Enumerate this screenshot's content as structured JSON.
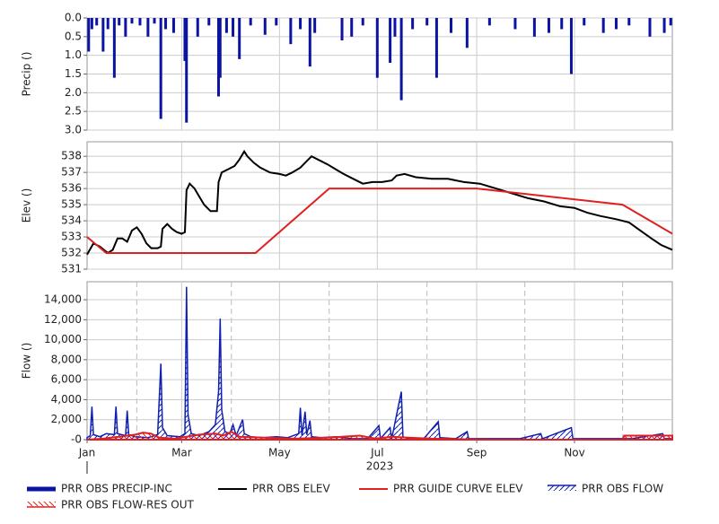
{
  "chart_data": [
    {
      "type": "bar",
      "ylabel": "Precip ()",
      "y_inverted": true,
      "grid": true,
      "ylim": [
        0,
        3
      ],
      "yticks": [
        {
          "value": 0,
          "label": "0.0"
        },
        0.5,
        {
          "value": 1,
          "label": "1.0"
        },
        1.5,
        {
          "value": 2,
          "label": "2.0"
        },
        2.5,
        {
          "value": 3,
          "label": "3.0"
        }
      ],
      "series": [
        {
          "name": "PRR OBS PRECIP-INC",
          "color": "#0a14a0",
          "x": [
            1,
            3,
            6,
            10,
            13,
            17,
            20,
            24,
            28,
            33,
            38,
            42,
            46,
            49,
            54,
            61,
            62,
            69,
            76,
            82,
            83,
            87,
            91,
            95,
            102,
            111,
            118,
            127,
            133,
            139,
            142,
            159,
            165,
            172,
            181,
            189,
            192,
            196,
            203,
            212,
            218,
            227,
            237,
            251,
            267,
            279,
            288,
            296,
            302,
            310,
            322,
            330,
            338,
            351,
            360,
            364
          ],
          "values": [
            0.9,
            0.3,
            0.2,
            0.9,
            0.3,
            1.6,
            0.2,
            0.5,
            0.15,
            0.2,
            0.5,
            0.15,
            2.7,
            0.3,
            0.4,
            1.15,
            2.8,
            0.5,
            0.2,
            2.1,
            1.6,
            0.4,
            0.5,
            1.1,
            0.2,
            0.45,
            0.2,
            0.7,
            0.3,
            1.3,
            0.4,
            0.6,
            0.5,
            0.2,
            1.6,
            1.2,
            0.5,
            2.2,
            0.3,
            0.2,
            1.6,
            0.4,
            0.8,
            0.2,
            0.3,
            0.5,
            0.4,
            0.3,
            1.5,
            0.2,
            0.4,
            0.3,
            0.2,
            0.5,
            0.4,
            0.2
          ]
        }
      ]
    },
    {
      "type": "line",
      "ylabel": "Elev ()",
      "grid": true,
      "ylim": [
        531,
        538.9
      ],
      "yticks": [
        531,
        532,
        533,
        534,
        535,
        536,
        537,
        538
      ],
      "series": [
        {
          "name": "PRR OBS ELEV",
          "color": "#000000",
          "x": [
            0,
            4,
            8,
            13,
            16,
            19,
            22,
            25,
            28,
            31,
            34,
            37,
            40,
            44,
            46,
            47,
            50,
            53,
            56,
            59,
            61,
            62,
            64,
            67,
            70,
            73,
            77,
            81,
            82,
            84,
            88,
            92,
            95,
            98,
            100,
            104,
            108,
            114,
            120,
            124,
            128,
            133,
            137,
            140,
            144,
            150,
            155,
            160,
            166,
            172,
            178,
            184,
            190,
            193,
            198,
            205,
            215,
            225,
            235,
            245,
            255,
            265,
            275,
            285,
            295,
            304,
            312,
            320,
            330,
            338,
            345,
            352,
            358,
            365
          ],
          "values": [
            531.9,
            532.6,
            532.4,
            532.0,
            532.2,
            532.9,
            532.9,
            532.7,
            533.4,
            533.6,
            533.2,
            532.6,
            532.3,
            532.3,
            532.4,
            533.5,
            533.8,
            533.5,
            533.3,
            533.2,
            533.3,
            535.9,
            536.3,
            536.0,
            535.5,
            535.0,
            534.6,
            534.6,
            536.4,
            537.0,
            537.2,
            537.4,
            537.8,
            538.3,
            538.0,
            537.6,
            537.3,
            537.0,
            536.9,
            536.8,
            537.0,
            537.3,
            537.7,
            538.0,
            537.8,
            537.5,
            537.2,
            536.9,
            536.6,
            536.3,
            536.4,
            536.4,
            536.5,
            536.8,
            536.9,
            536.7,
            536.6,
            536.6,
            536.4,
            536.3,
            536.0,
            535.7,
            535.4,
            535.2,
            534.9,
            534.8,
            534.5,
            534.3,
            534.1,
            533.9,
            533.4,
            532.9,
            532.5,
            532.2
          ]
        },
        {
          "name": "PRR GUIDE CURVE ELEV",
          "color": "#e02020",
          "x": [
            0,
            12,
            105,
            151,
            243,
            334,
            365
          ],
          "values": [
            533,
            532,
            532,
            536,
            536,
            535,
            533.2
          ]
        }
      ]
    },
    {
      "type": "area",
      "ylabel": "Flow ()",
      "xlabel": "2023",
      "grid": true,
      "xlim": [
        0,
        365
      ],
      "xticks": [
        {
          "value": 0,
          "label": "Jan"
        },
        {
          "value": 59,
          "label": "Mar"
        },
        {
          "value": 120,
          "label": "May"
        },
        {
          "value": 181,
          "label": "Jul"
        },
        {
          "value": 243,
          "label": "Sep"
        },
        {
          "value": 304,
          "label": "Nov"
        }
      ],
      "xminorticks": [
        31,
        90,
        151,
        212,
        273,
        334
      ],
      "ylim": [
        0,
        15800
      ],
      "yticks": [
        {
          "value": 0,
          "label": "-0"
        },
        {
          "value": 2000,
          "label": "2,000"
        },
        {
          "value": 4000,
          "label": "4,000"
        },
        {
          "value": 6000,
          "label": "6,000"
        },
        {
          "value": 8000,
          "label": "8,000"
        },
        {
          "value": 10000,
          "label": "10,000"
        },
        {
          "value": 12000,
          "label": "12,000"
        },
        {
          "value": 14000,
          "label": "14,000"
        }
      ],
      "series": [
        {
          "name": "PRR OBS FLOW",
          "color": "#1020b0",
          "x": [
            0,
            2,
            3,
            4,
            8,
            12,
            17,
            18,
            19,
            24,
            25,
            26,
            30,
            38,
            44,
            46,
            47,
            50,
            58,
            61,
            62,
            63,
            65,
            70,
            76,
            80,
            82,
            83,
            84,
            86,
            89,
            91,
            93,
            97,
            98,
            102,
            110,
            118,
            125,
            132,
            133,
            134,
            136,
            137,
            139,
            140,
            146,
            155,
            165,
            175,
            182,
            183,
            189,
            190,
            196,
            197,
            200,
            210,
            219,
            220,
            230,
            237,
            238,
            250,
            270,
            283,
            284,
            302,
            303,
            320,
            340,
            359,
            360,
            365
          ],
          "values": [
            200,
            400,
            3300,
            500,
            300,
            600,
            500,
            3300,
            600,
            400,
            2900,
            500,
            300,
            200,
            500,
            7600,
            1200,
            400,
            300,
            600,
            15300,
            2500,
            600,
            400,
            800,
            1500,
            4800,
            12100,
            3000,
            800,
            600,
            1500,
            400,
            2000,
            600,
            300,
            200,
            300,
            200,
            600,
            3200,
            400,
            2800,
            500,
            1900,
            300,
            200,
            300,
            100,
            100,
            1400,
            100,
            1200,
            100,
            4800,
            300,
            100,
            100,
            1800,
            200,
            100,
            800,
            100,
            100,
            100,
            600,
            100,
            1200,
            100,
            100,
            100,
            600,
            100,
            100
          ]
        },
        {
          "name": "PRR OBS FLOW-RES OUT",
          "color": "#e02020",
          "x": [
            0,
            10,
            20,
            30,
            35,
            40,
            45,
            55,
            62,
            70,
            80,
            85,
            90,
            95,
            110,
            130,
            150,
            170,
            180,
            190,
            200,
            215,
            250,
            300,
            334,
            335,
            365
          ],
          "values": [
            0,
            100,
            300,
            500,
            700,
            600,
            200,
            100,
            300,
            500,
            600,
            400,
            800,
            300,
            200,
            100,
            200,
            400,
            100,
            300,
            200,
            100,
            0,
            0,
            0,
            400,
            400
          ]
        }
      ]
    }
  ]
}
